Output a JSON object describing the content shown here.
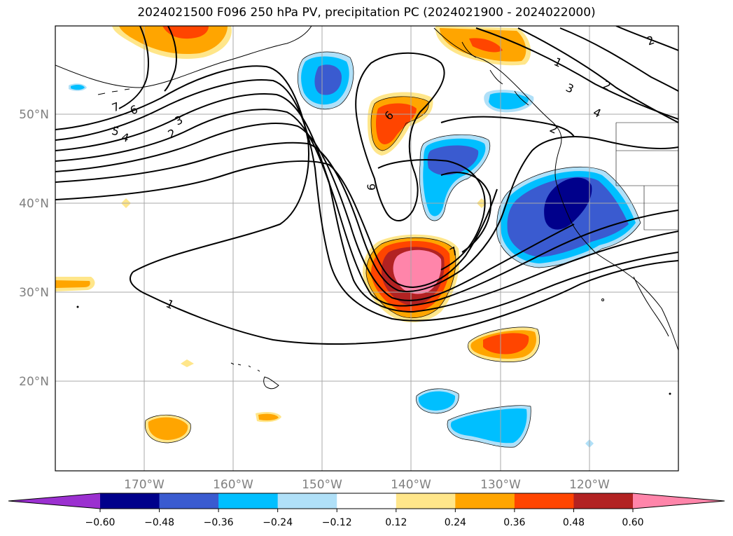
{
  "title": "2024021500 F096 250 hPa PV, precipitation PC (2024021900 - 2024022000)",
  "map": {
    "lon_ticks": [
      "170°W",
      "160°W",
      "150°W",
      "140°W",
      "130°W",
      "120°W"
    ],
    "lat_ticks": [
      "50°N",
      "40°N",
      "30°N",
      "20°N"
    ],
    "contour_labels": [
      "1",
      "2",
      "3",
      "4",
      "5",
      "6",
      "7",
      "6",
      "7",
      "2",
      "3",
      "4",
      "2",
      "2",
      "1"
    ],
    "grid": true
  },
  "colorbar": {
    "ticks": [
      "−0.60",
      "−0.48",
      "−0.36",
      "−0.24",
      "−0.12",
      "0.12",
      "0.24",
      "0.36",
      "0.48",
      "0.60"
    ],
    "colors": [
      "#9b30d0",
      "#00008b",
      "#3a5bd0",
      "#00bfff",
      "#b0e0f8",
      "#ffffff",
      "#ffe68a",
      "#ffa500",
      "#ff4500",
      "#b22222",
      "#ff85aa",
      "#ff85aa"
    ],
    "extend": "both"
  },
  "colors": {
    "orange": "#ffa500",
    "red_orange": "#ff4500",
    "yellow": "#ffe68a",
    "dark_red": "#b22222",
    "pink": "#ff85aa",
    "light_blue": "#b0e0f8",
    "sky_blue": "#00bfff",
    "royal_blue": "#3a5bd0",
    "navy": "#00008b",
    "purple": "#9b30d0"
  }
}
